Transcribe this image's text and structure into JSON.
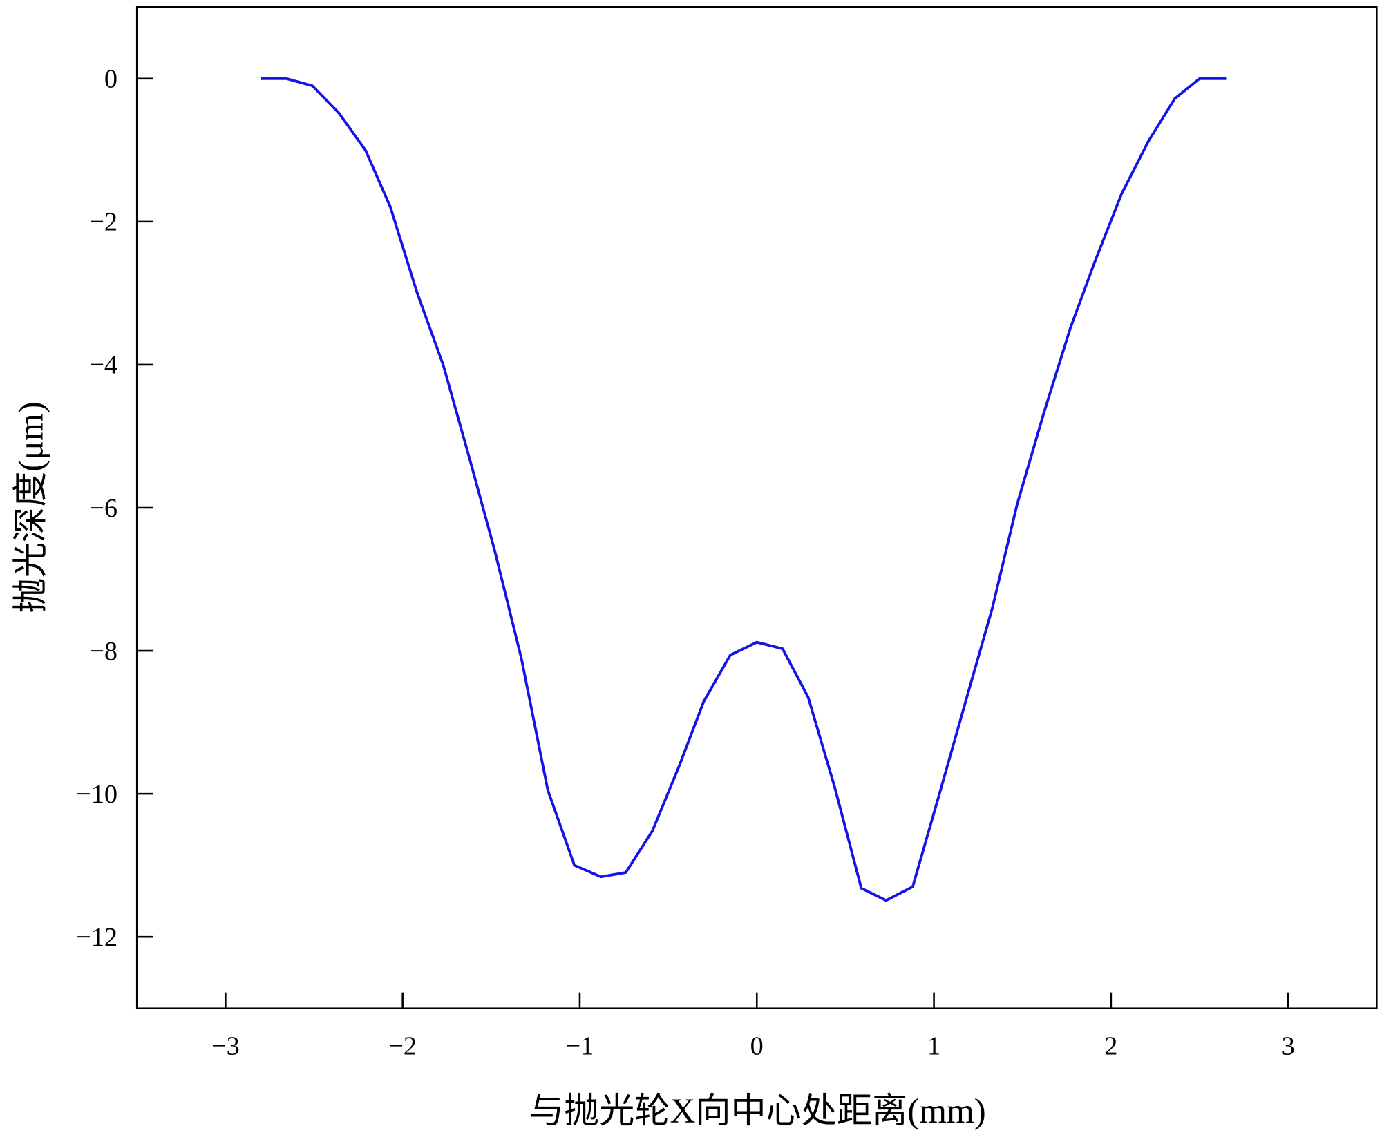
{
  "chart_data": {
    "type": "line",
    "xlabel": "与抛光轮X向中心处距离(mm)",
    "ylabel": "抛光深度(μm)",
    "xlim": [
      -3.5,
      3.5
    ],
    "ylim": [
      -13,
      1
    ],
    "xticks": [
      {
        "value": -3,
        "label": "−3"
      },
      {
        "value": -2,
        "label": "−2"
      },
      {
        "value": -1,
        "label": "−1"
      },
      0,
      1,
      2,
      3
    ],
    "yticks": [
      0,
      {
        "value": -2,
        "label": "−2"
      },
      {
        "value": -4,
        "label": "−4"
      },
      {
        "value": -6,
        "label": "−6"
      },
      {
        "value": -8,
        "label": "−8"
      },
      {
        "value": -10,
        "label": "−10"
      },
      {
        "value": -12,
        "label": "−12"
      }
    ],
    "series": [
      {
        "color": "#1414e6",
        "x": [
          -2.8,
          -2.657,
          -2.51,
          -2.36,
          -2.21,
          -2.07,
          -1.92,
          -1.77,
          -1.62,
          -1.48,
          -1.33,
          -1.18,
          -1.03,
          -0.88,
          -0.74,
          -0.59,
          -0.44,
          -0.3,
          -0.15,
          0,
          0.145,
          0.29,
          0.44,
          0.59,
          0.73,
          0.88,
          1.03,
          1.18,
          1.33,
          1.47,
          1.62,
          1.77,
          1.91,
          2.06,
          2.21,
          2.36,
          2.5,
          2.65
        ],
        "values": [
          0,
          0,
          -0.1,
          -0.48,
          -1.0,
          -1.79,
          -2.98,
          -4.01,
          -5.33,
          -6.6,
          -8.1,
          -9.95,
          -11.0,
          -11.16,
          -11.1,
          -10.52,
          -9.62,
          -8.71,
          -8.06,
          -7.88,
          -7.97,
          -8.65,
          -9.91,
          -11.32,
          -11.49,
          -11.3,
          -10.01,
          -8.7,
          -7.4,
          -5.95,
          -4.68,
          -3.49,
          -2.55,
          -1.61,
          -0.88,
          -0.28,
          0,
          0
        ]
      }
    ]
  }
}
